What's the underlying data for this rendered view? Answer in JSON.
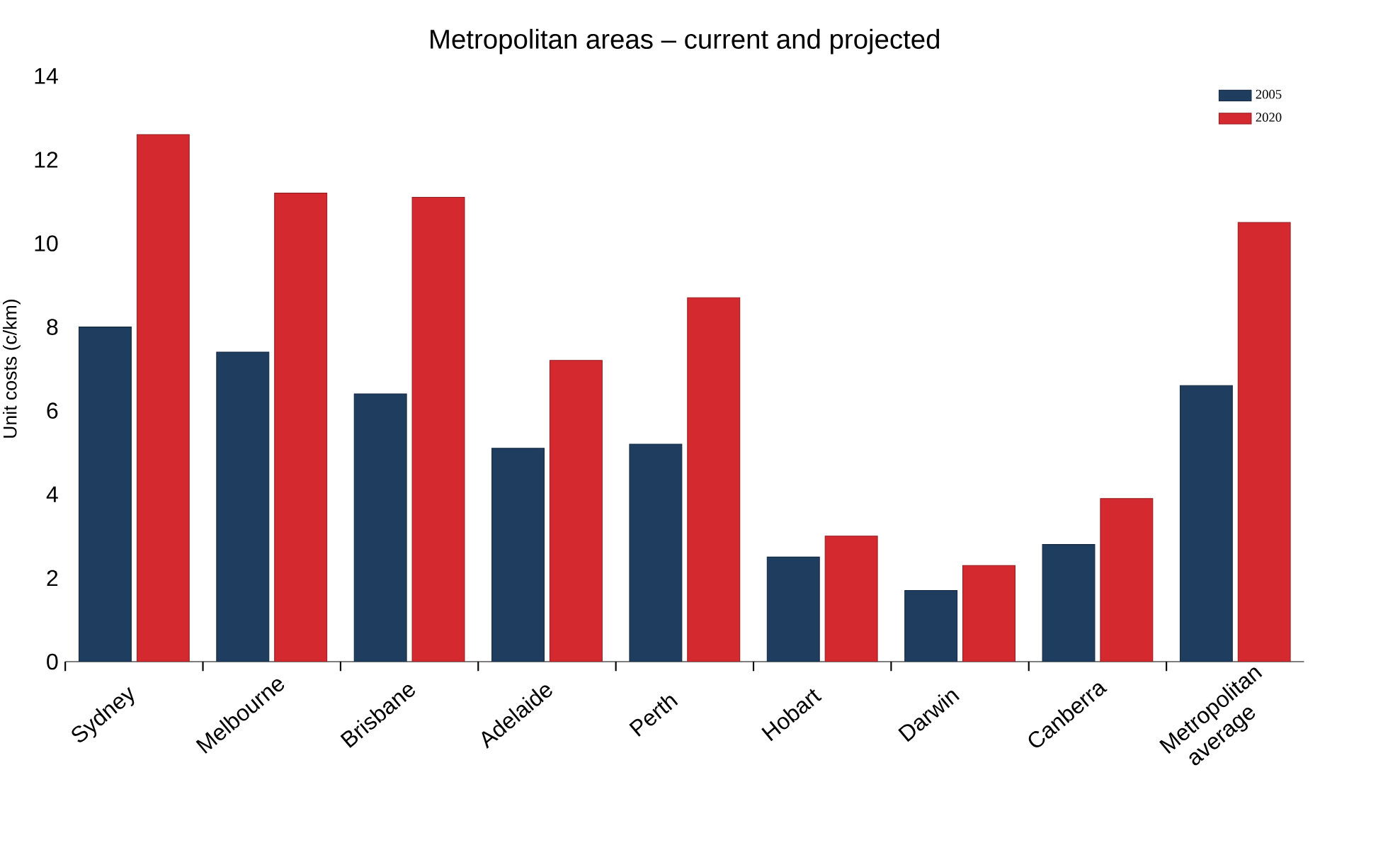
{
  "chart_data": {
    "type": "bar",
    "title": "Metropolitan areas – current and projected",
    "ylabel": "Unit costs (c/km)",
    "categories": [
      "Sydney",
      "Melbourne",
      "Brisbane",
      "Adelaide",
      "Perth",
      "Hobart",
      "Darwin",
      "Canberra",
      "Metropolitan average"
    ],
    "series": [
      {
        "name": "2005",
        "color": "#1f3d5e",
        "values": [
          8.0,
          7.4,
          6.4,
          5.1,
          5.2,
          2.5,
          1.7,
          2.8,
          6.6
        ]
      },
      {
        "name": "2020",
        "color": "#d42a2f",
        "values": [
          12.6,
          11.2,
          11.1,
          7.2,
          8.7,
          3.0,
          2.3,
          3.9,
          10.5
        ]
      }
    ],
    "ylim": [
      0,
      14
    ],
    "yticks": [
      0,
      2,
      4,
      6,
      8,
      10,
      12,
      14
    ],
    "grid": false,
    "legend": "top right"
  }
}
